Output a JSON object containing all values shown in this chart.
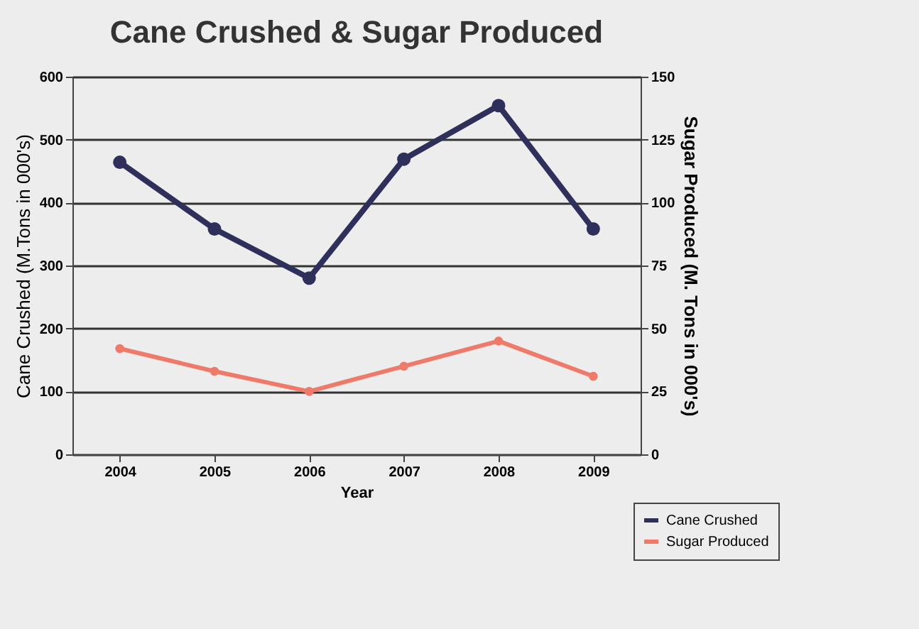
{
  "chart_data": {
    "type": "line",
    "title": "Cane Crushed & Sugar Produced",
    "xlabel": "Year",
    "ylabel": "Cane Crushed (M.Tons in 000's)",
    "y2label": "Sugar Produced (M. Tons in 000's)",
    "categories": [
      "2004",
      "2005",
      "2006",
      "2007",
      "2008",
      "2009"
    ],
    "series": [
      {
        "name": "Cane Crushed",
        "color": "#2e2f5a",
        "values": [
          464,
          358,
          280,
          469,
          554,
          358
        ]
      },
      {
        "name": "Sugar Produced",
        "color": "#f07a6a",
        "values": [
          42,
          33,
          25,
          35,
          45,
          31
        ],
        "axis": "y2"
      }
    ],
    "ylim": [
      0,
      600
    ],
    "yticks": [
      0,
      100,
      200,
      300,
      400,
      500,
      600
    ],
    "y2lim": [
      0,
      150
    ],
    "y2ticks": [
      0,
      25,
      50,
      75,
      100,
      125,
      150
    ],
    "grid": "y",
    "legend": "bottom right",
    "marker": "circle",
    "line_style": "solid"
  }
}
